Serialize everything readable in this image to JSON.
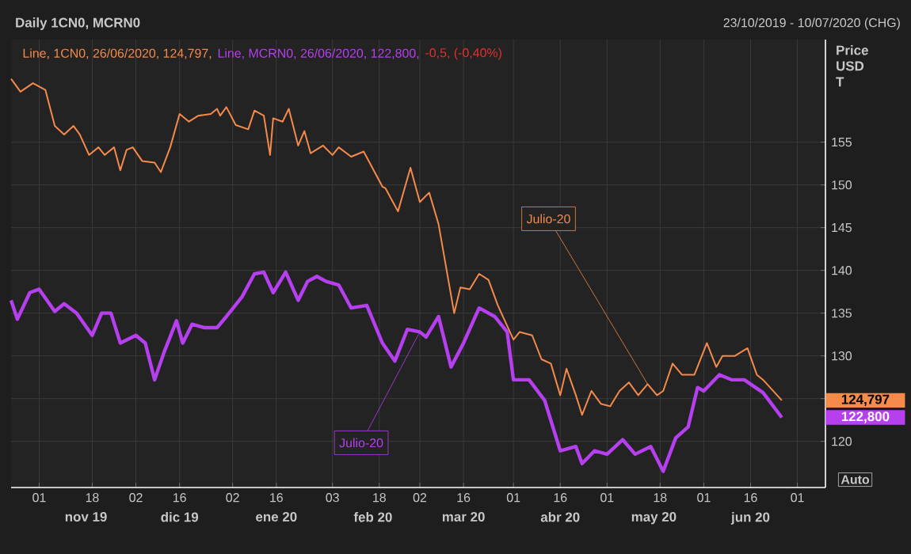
{
  "chart_data": {
    "type": "line",
    "title": "Daily 1CN0, MCRN0",
    "subtitle": "23/10/2019 - 10/07/2020 (CHG)",
    "ylabel": "Price USD T",
    "annotations": [
      "Line, 1CN0, 26/06/2020, 124,797,",
      "Line, MCRN0, 26/06/2020, 122,800,",
      "-0,5, (-0,40%)",
      "Auto",
      "124,797",
      "122,800",
      "nov 19",
      "dic 19",
      "ene 20",
      "feb 20",
      "mar 20",
      "abr 20",
      "may 20",
      "jun 20"
    ],
    "xlim": [
      "2019-10-23",
      "2020-07-10"
    ],
    "ylim": [
      114.6,
      167.0
    ],
    "xticks": [
      {
        "value": "2019-11-01",
        "label": "01"
      },
      {
        "value": "2019-11-18",
        "label": "18"
      },
      {
        "value": "2019-12-02",
        "label": "02"
      },
      {
        "value": "2019-12-16",
        "label": "16"
      },
      {
        "value": "2020-01-02",
        "label": "02"
      },
      {
        "value": "2020-01-16",
        "label": "16"
      },
      {
        "value": "2020-02-03",
        "label": "03"
      },
      {
        "value": "2020-02-18",
        "label": "18"
      },
      {
        "value": "2020-03-02",
        "label": "02"
      },
      {
        "value": "2020-03-16",
        "label": "16"
      },
      {
        "value": "2020-04-01",
        "label": "01"
      },
      {
        "value": "2020-04-16",
        "label": "16"
      },
      {
        "value": "2020-05-01",
        "label": "01"
      },
      {
        "value": "2020-05-18",
        "label": "18"
      },
      {
        "value": "2020-06-01",
        "label": "01"
      },
      {
        "value": "2020-06-16",
        "label": "16"
      },
      {
        "value": "2020-07-01",
        "label": "01"
      }
    ],
    "yticks": [
      120,
      {
        "value": 125,
        "label": null
      },
      130,
      135,
      140,
      145,
      150,
      155
    ],
    "grid": true,
    "series": [
      {
        "name": "Julio-20",
        "color": "#f58a4b",
        "x": [
          "2019-10-23",
          "2019-10-26",
          "2019-10-30",
          "2019-11-03",
          "2019-11-06",
          "2019-11-09",
          "2019-11-12",
          "2019-11-14",
          "2019-11-17",
          "2019-11-20",
          "2019-11-22",
          "2019-11-25",
          "2019-11-27",
          "2019-11-29",
          "2019-12-01",
          "2019-12-04",
          "2019-12-08",
          "2019-12-10",
          "2019-12-13",
          "2019-12-16",
          "2019-12-19",
          "2019-12-22",
          "2019-12-26",
          "2019-12-28",
          "2019-12-29",
          "2019-12-31",
          "2020-01-03",
          "2020-01-07",
          "2020-01-09",
          "2020-01-12",
          "2020-01-14",
          "2020-01-15",
          "2020-01-18",
          "2020-01-20",
          "2020-01-23",
          "2020-01-25",
          "2020-01-27",
          "2020-01-31",
          "2020-02-03",
          "2020-02-05",
          "2020-02-09",
          "2020-02-13",
          "2020-02-19",
          "2020-02-20",
          "2020-02-24",
          "2020-02-28",
          "2020-03-02",
          "2020-03-05",
          "2020-03-08",
          "2020-03-13",
          "2020-03-15",
          "2020-03-18",
          "2020-03-21",
          "2020-03-24",
          "2020-03-27",
          "2020-04-01",
          "2020-04-03",
          "2020-04-07",
          "2020-04-10",
          "2020-04-13",
          "2020-04-16",
          "2020-04-18",
          "2020-04-21",
          "2020-04-23",
          "2020-04-26",
          "2020-04-29",
          "2020-05-02",
          "2020-05-05",
          "2020-05-08",
          "2020-05-11",
          "2020-05-14",
          "2020-05-17",
          "2020-05-19",
          "2020-05-22",
          "2020-05-25",
          "2020-05-29",
          "2020-06-02",
          "2020-06-05",
          "2020-06-07",
          "2020-06-11",
          "2020-06-15",
          "2020-06-18",
          "2020-06-20",
          "2020-06-26"
        ],
        "values": [
          162.4,
          160.9,
          161.9,
          161.1,
          156.9,
          155.9,
          156.9,
          155.9,
          153.5,
          154.4,
          153.5,
          154.4,
          151.7,
          154.1,
          154.4,
          152.8,
          152.6,
          151.5,
          154.4,
          158.3,
          157.4,
          158.1,
          158.3,
          158.9,
          158.1,
          159.1,
          157.0,
          156.5,
          158.7,
          158.1,
          153.5,
          157.8,
          157.4,
          158.9,
          154.6,
          156.3,
          153.7,
          154.6,
          153.5,
          154.4,
          153.3,
          153.9,
          149.8,
          149.6,
          146.9,
          152.0,
          148.0,
          149.1,
          145.4,
          135.0,
          138.0,
          137.8,
          139.6,
          138.9,
          135.9,
          131.9,
          132.8,
          132.4,
          129.6,
          129.1,
          125.4,
          128.5,
          125.4,
          123.1,
          125.9,
          124.4,
          124.1,
          125.9,
          126.9,
          125.4,
          126.7,
          125.4,
          125.9,
          129.1,
          127.8,
          127.8,
          131.5,
          128.7,
          130.0,
          130.0,
          130.9,
          127.8,
          127.2,
          124.8
        ]
      },
      {
        "name": "Julio-20",
        "color": "#b63ff0",
        "x": [
          "2019-10-23",
          "2019-10-25",
          "2019-10-29",
          "2019-11-01",
          "2019-11-06",
          "2019-11-09",
          "2019-11-13",
          "2019-11-18",
          "2019-11-21",
          "2019-11-24",
          "2019-11-27",
          "2019-12-02",
          "2019-12-05",
          "2019-12-08",
          "2019-12-11",
          "2019-12-15",
          "2019-12-17",
          "2019-12-20",
          "2019-12-24",
          "2019-12-28",
          "2019-12-31",
          "2020-01-05",
          "2020-01-09",
          "2020-01-12",
          "2020-01-15",
          "2020-01-19",
          "2020-01-23",
          "2020-01-26",
          "2020-01-29",
          "2020-02-01",
          "2020-02-05",
          "2020-02-09",
          "2020-02-14",
          "2020-02-19",
          "2020-02-23",
          "2020-02-27",
          "2020-03-02",
          "2020-03-04",
          "2020-03-08",
          "2020-03-12",
          "2020-03-16",
          "2020-03-21",
          "2020-03-26",
          "2020-03-30",
          "2020-04-01",
          "2020-04-06",
          "2020-04-11",
          "2020-04-16",
          "2020-04-21",
          "2020-04-23",
          "2020-04-27",
          "2020-05-01",
          "2020-05-06",
          "2020-05-10",
          "2020-05-15",
          "2020-05-19",
          "2020-05-23",
          "2020-05-27",
          "2020-05-30",
          "2020-06-01",
          "2020-06-06",
          "2020-06-10",
          "2020-06-14",
          "2020-06-16",
          "2020-06-20",
          "2020-06-26"
        ],
        "values": [
          136.5,
          134.3,
          137.4,
          137.8,
          135.2,
          136.1,
          135.0,
          132.4,
          135.0,
          135.0,
          131.5,
          132.4,
          131.5,
          127.2,
          130.4,
          134.1,
          131.5,
          133.7,
          133.3,
          133.3,
          134.6,
          136.9,
          139.6,
          139.8,
          137.4,
          139.8,
          136.5,
          138.7,
          139.3,
          138.7,
          138.3,
          135.6,
          135.9,
          131.5,
          129.4,
          133.1,
          132.8,
          132.2,
          134.6,
          128.7,
          131.5,
          135.6,
          134.6,
          132.8,
          127.2,
          127.2,
          124.8,
          118.9,
          119.4,
          117.4,
          118.9,
          118.5,
          120.2,
          118.5,
          119.4,
          116.5,
          120.4,
          121.7,
          126.3,
          125.9,
          127.8,
          127.2,
          127.2,
          126.7,
          125.7,
          122.8
        ]
      }
    ]
  }
}
